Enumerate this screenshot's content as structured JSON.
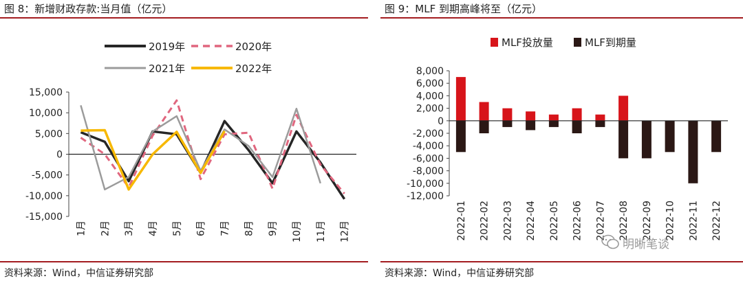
{
  "left": {
    "title": "图 8：新增财政存款:当月值（亿元）",
    "source": "资料来源：Wind，中信证券研究部"
  },
  "right": {
    "title": "图 9：MLF 到期高峰将至（亿元）",
    "source": "资料来源：Wind，中信证券研究部",
    "watermark": "明晰笔谈"
  },
  "chart_data": [
    {
      "type": "line",
      "title": "新增财政存款:当月值（亿元）",
      "categories": [
        "1月",
        "2月",
        "3月",
        "4月",
        "5月",
        "6月",
        "7月",
        "8月",
        "9月",
        "10月",
        "11月",
        "12月"
      ],
      "ylim": [
        -15000,
        15000
      ],
      "yticks": [
        15000,
        10000,
        5000,
        0,
        -5000,
        -10000,
        -15000
      ],
      "ytick_labels": [
        "15,000",
        "10,000",
        "5,000",
        "0",
        "-5,000",
        "-10,000",
        "-15,000"
      ],
      "legend_position": "top",
      "grid": false,
      "series": [
        {
          "name": "2019年",
          "color": "#262626",
          "dash": "solid",
          "width": 3.5,
          "values": [
            5300,
            3000,
            -6500,
            5500,
            4800,
            -4500,
            8000,
            1000,
            -7000,
            5500,
            -2000,
            -10800
          ]
        },
        {
          "name": "2020年",
          "color": "#e0667e",
          "dash": "dashed",
          "width": 3,
          "values": [
            4000,
            0,
            -8000,
            4500,
            13000,
            -6000,
            4800,
            5200,
            -8300,
            9500,
            -2500,
            -9500
          ]
        },
        {
          "name": "2021年",
          "color": "#9b9b9b",
          "dash": "solid",
          "width": 2.5,
          "values": [
            11800,
            -8500,
            -5500,
            5500,
            9200,
            -4000,
            6000,
            2000,
            -5500,
            11000,
            -7000,
            null
          ]
        },
        {
          "name": "2022年",
          "color": "#f7b800",
          "dash": "solid",
          "width": 3.5,
          "values": [
            5700,
            5800,
            -8500,
            0,
            5400,
            -4500,
            5600,
            null,
            null,
            null,
            null,
            null
          ]
        }
      ]
    },
    {
      "type": "bar",
      "title": "MLF 到期高峰将至（亿元）",
      "categories": [
        "2022-01",
        "2022-02",
        "2022-03",
        "2022-04",
        "2022-05",
        "2022-06",
        "2022-07",
        "2022-08",
        "2022-09",
        "2022-10",
        "2022-11",
        "2022-12"
      ],
      "ylim": [
        -12000,
        8000
      ],
      "yticks": [
        8000,
        6000,
        4000,
        2000,
        0,
        -2000,
        -4000,
        -6000,
        -8000,
        -10000,
        -12000
      ],
      "ytick_labels": [
        "8,000",
        "6,000",
        "4,000",
        "2,000",
        "0",
        "-2,000",
        "-4,000",
        "-6,000",
        "-8,000",
        "-10,000",
        "-12,000"
      ],
      "legend_position": "top",
      "grid": false,
      "series": [
        {
          "name": "MLF投放量",
          "color": "#d7141a",
          "values": [
            7000,
            3000,
            2000,
            1500,
            1000,
            2000,
            1000,
            4000,
            null,
            null,
            null,
            null
          ]
        },
        {
          "name": "MLF到期量",
          "color": "#2b1815",
          "values": [
            -5000,
            -2000,
            -1000,
            -1500,
            -1000,
            -2000,
            -1000,
            -6000,
            -6000,
            -5000,
            -10000,
            -5000
          ]
        }
      ]
    }
  ]
}
